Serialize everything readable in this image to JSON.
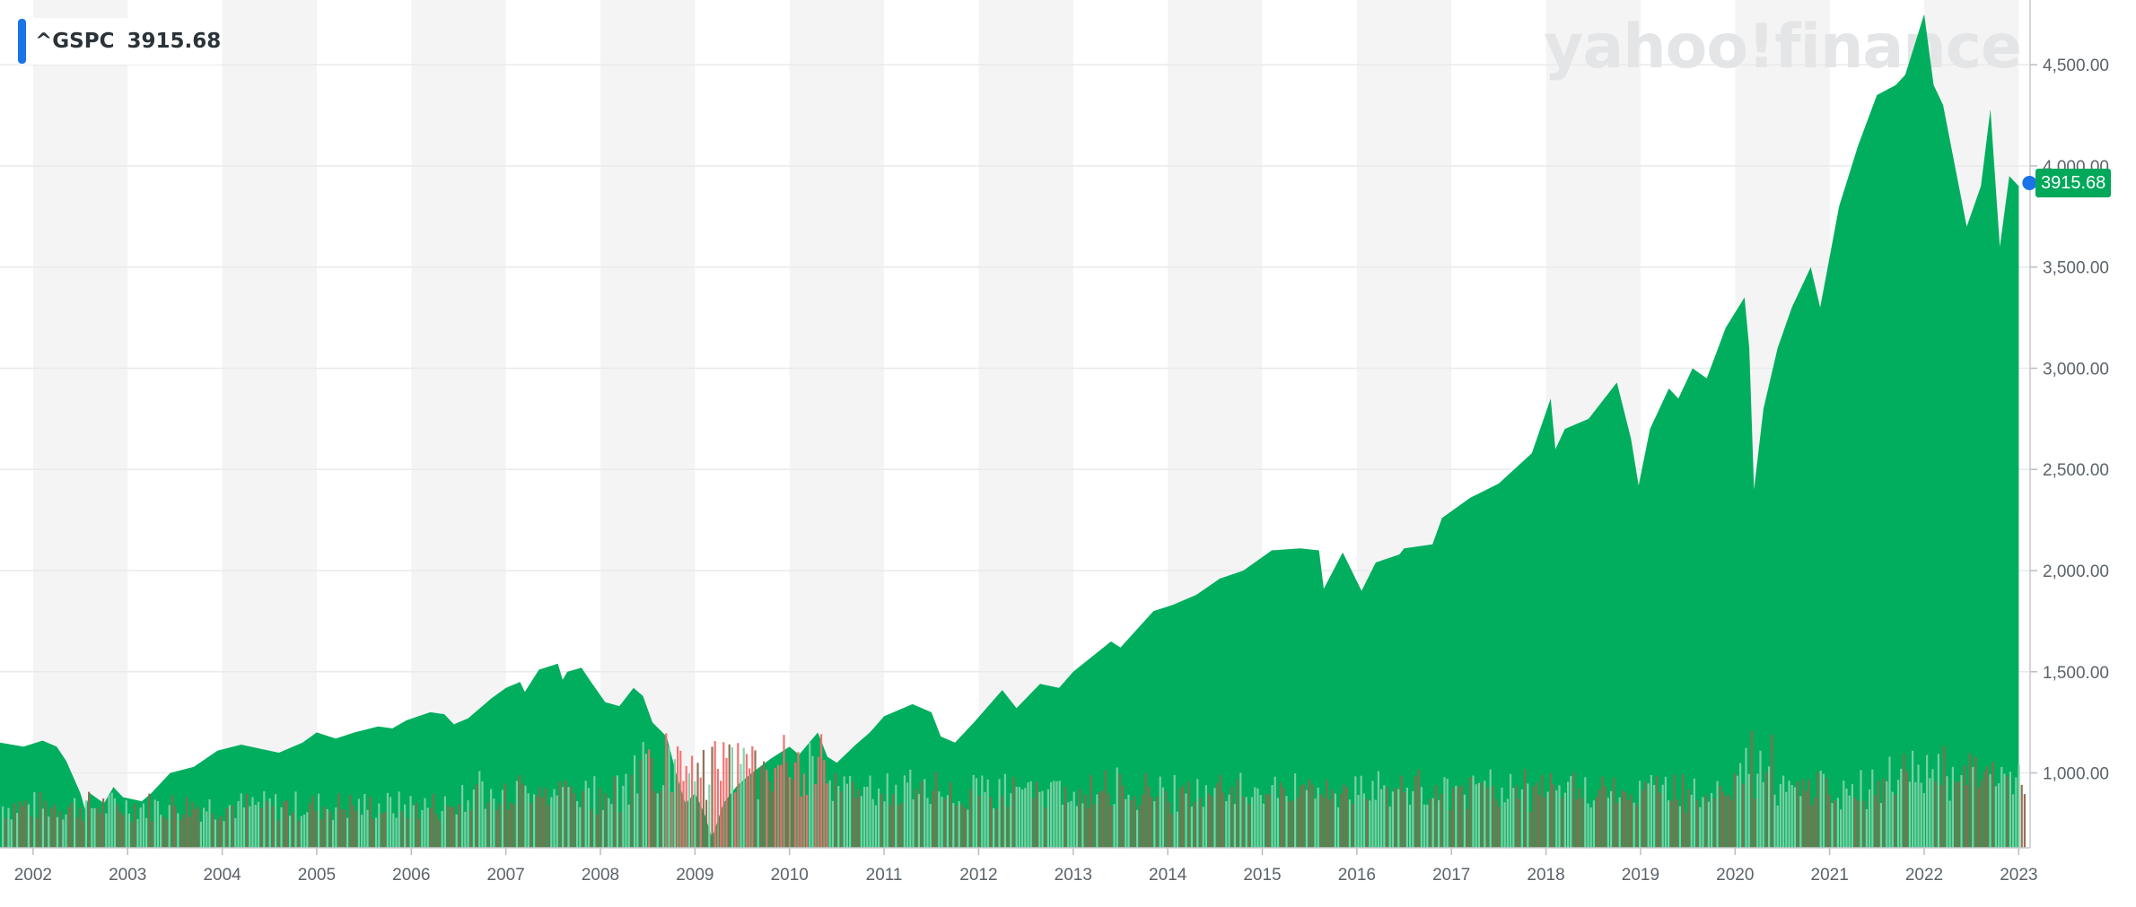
{
  "legend": {
    "symbol": "^GSPC",
    "value": "3915.68",
    "color": "#1a73e8"
  },
  "watermark": "yahoo!finance",
  "price_badge": "3915.68",
  "colors": {
    "area": "#00ae5e",
    "volume_up": "#7fd1a7",
    "volume_down": "#8b6a4c",
    "volume_red": "#f26d6d",
    "band": "#f4f4f5",
    "grid": "#e9eaec",
    "marker": "#1a73e8"
  },
  "chart_data": {
    "type": "area",
    "title": "",
    "xlabel": "",
    "ylabel": "",
    "xlim": [
      2001.65,
      2023.12
    ],
    "ylim": [
      630,
      4820
    ],
    "grid": true,
    "legend": "top-left",
    "x_ticks": [
      "2002",
      "2003",
      "2004",
      "2005",
      "2006",
      "2007",
      "2008",
      "2009",
      "2010",
      "2011",
      "2012",
      "2013",
      "2014",
      "2015",
      "2016",
      "2017",
      "2018",
      "2019",
      "2020",
      "2021",
      "2022",
      "2023"
    ],
    "y_ticks": [
      "1,000.00",
      "1,500.00",
      "2,000.00",
      "2,500.00",
      "3,000.00",
      "3,500.00",
      "4,000.00",
      "4,500.00"
    ],
    "y_tick_values": [
      1000,
      1500,
      2000,
      2500,
      3000,
      3500,
      4000,
      4500
    ],
    "series": [
      {
        "x": [
          2001.65,
          2001.9,
          2002.1,
          2002.25,
          2002.35,
          2002.5,
          2002.55,
          2002.6,
          2002.75,
          2002.85,
          2002.95,
          2003.15,
          2003.25,
          2003.45,
          2003.7,
          2003.95,
          2004.2,
          2004.4,
          2004.6,
          2004.85,
          2005.0,
          2005.2,
          2005.4,
          2005.65,
          2005.8,
          2005.95,
          2006.2,
          2006.35,
          2006.45,
          2006.6,
          2006.85,
          2007.0,
          2007.15,
          2007.2,
          2007.35,
          2007.55,
          2007.6,
          2007.65,
          2007.8,
          2007.9,
          2008.05,
          2008.2,
          2008.35,
          2008.45,
          2008.55,
          2008.7,
          2008.8,
          2008.9,
          2009.0,
          2009.1,
          2009.18,
          2009.3,
          2009.45,
          2009.6,
          2009.8,
          2010.0,
          2010.1,
          2010.3,
          2010.4,
          2010.5,
          2010.7,
          2010.85,
          2011.0,
          2011.3,
          2011.5,
          2011.6,
          2011.75,
          2011.95,
          2012.25,
          2012.4,
          2012.65,
          2012.85,
          2013.0,
          2013.4,
          2013.5,
          2013.85,
          2014.05,
          2014.3,
          2014.55,
          2014.8,
          2014.95,
          2015.1,
          2015.4,
          2015.6,
          2015.65,
          2015.85,
          2016.05,
          2016.2,
          2016.45,
          2016.5,
          2016.8,
          2016.9,
          2017.2,
          2017.5,
          2017.85,
          2018.05,
          2018.1,
          2018.2,
          2018.45,
          2018.75,
          2018.9,
          2018.98,
          2019.1,
          2019.3,
          2019.4,
          2019.55,
          2019.7,
          2019.9,
          2020.1,
          2020.15,
          2020.2,
          2020.3,
          2020.45,
          2020.6,
          2020.8,
          2020.9,
          2021.1,
          2021.3,
          2021.5,
          2021.7,
          2021.8,
          2022.0,
          2022.1,
          2022.2,
          2022.45,
          2022.6,
          2022.7,
          2022.8,
          2022.9,
          2023.0
        ],
        "y": [
          1150,
          1130,
          1160,
          1130,
          1060,
          900,
          820,
          900,
          850,
          930,
          880,
          860,
          900,
          1000,
          1030,
          1110,
          1140,
          1120,
          1100,
          1150,
          1200,
          1170,
          1200,
          1230,
          1220,
          1260,
          1300,
          1290,
          1240,
          1270,
          1370,
          1420,
          1450,
          1400,
          1510,
          1540,
          1460,
          1500,
          1520,
          1450,
          1350,
          1330,
          1420,
          1380,
          1250,
          1180,
          1000,
          850,
          900,
          800,
          680,
          850,
          940,
          1000,
          1070,
          1130,
          1090,
          1200,
          1080,
          1050,
          1140,
          1200,
          1280,
          1340,
          1300,
          1180,
          1150,
          1250,
          1410,
          1320,
          1440,
          1420,
          1500,
          1650,
          1620,
          1800,
          1830,
          1880,
          1960,
          2000,
          2050,
          2100,
          2110,
          2100,
          1910,
          2090,
          1900,
          2040,
          2080,
          2110,
          2130,
          2260,
          2360,
          2430,
          2580,
          2850,
          2600,
          2700,
          2750,
          2930,
          2650,
          2420,
          2700,
          2900,
          2850,
          3000,
          2950,
          3200,
          3350,
          3100,
          2400,
          2800,
          3100,
          3300,
          3500,
          3300,
          3800,
          4100,
          4350,
          4400,
          4450,
          4750,
          4400,
          4300,
          3700,
          3900,
          4280,
          3600,
          3950,
          3900
        ]
      }
    ],
    "last_value": 3915.68
  }
}
